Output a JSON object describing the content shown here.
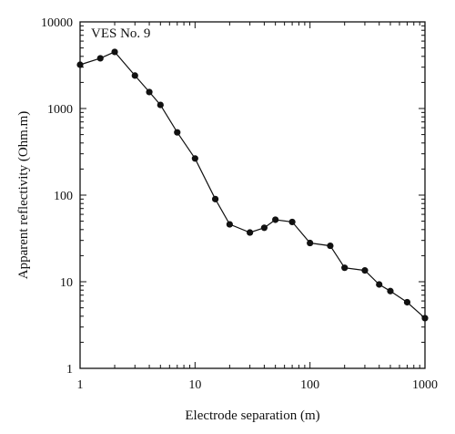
{
  "chart_data": {
    "type": "line",
    "title": "VES No. 9",
    "xlabel": "Electrode separation (m)",
    "ylabel": "Apparent reflectivity (Ohm.m)",
    "xscale": "log",
    "yscale": "log",
    "xlim": [
      1,
      1000
    ],
    "ylim": [
      1,
      10000
    ],
    "x_ticks": [
      "1",
      "10",
      "100",
      "1000"
    ],
    "y_ticks": [
      "1",
      "10",
      "100",
      "1000",
      "10000"
    ],
    "grid": false,
    "legend": "none",
    "series": [
      {
        "x": [
          1,
          1.5,
          2,
          3,
          4,
          5,
          7,
          10,
          15,
          20,
          30,
          40,
          50,
          70,
          100,
          150,
          200,
          300,
          400,
          500,
          700,
          1000
        ],
        "y": [
          3200,
          3800,
          4500,
          2400,
          1550,
          1100,
          530,
          265,
          90,
          46,
          37,
          42,
          52,
          49,
          28,
          26,
          14.5,
          13.5,
          9.3,
          7.8,
          5.8,
          3.8
        ]
      }
    ]
  }
}
